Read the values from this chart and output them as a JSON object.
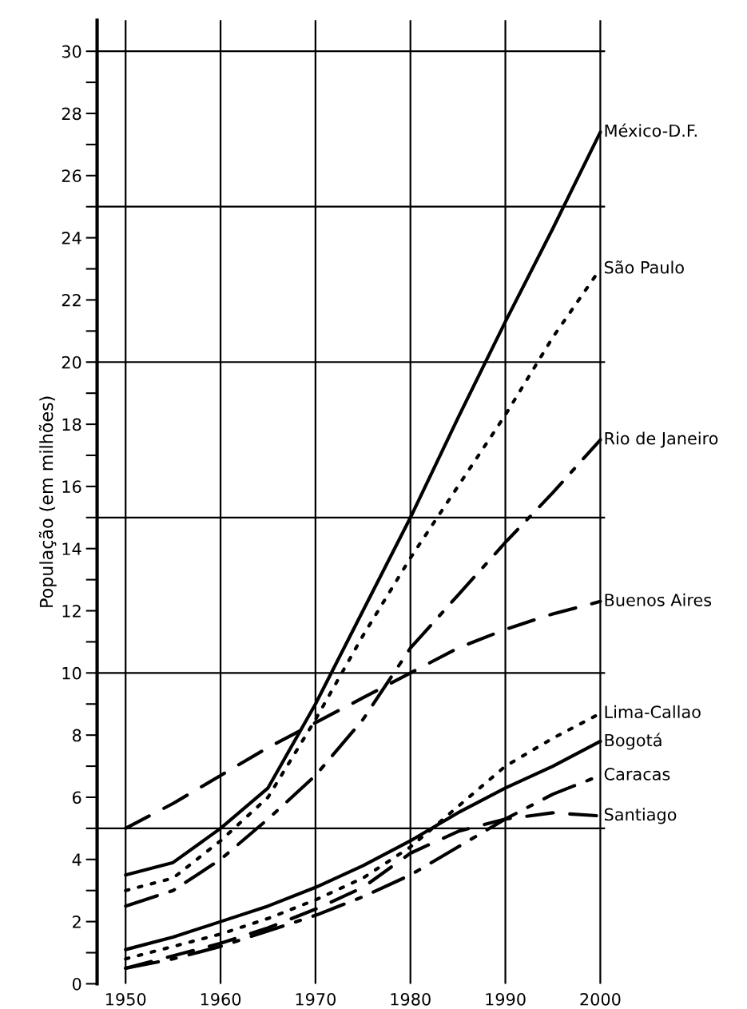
{
  "chart_data": {
    "type": "line",
    "ylabel": "População (em milhões)",
    "x": [
      1950,
      1955,
      1960,
      1965,
      1970,
      1975,
      1980,
      1985,
      1990,
      1995,
      2000
    ],
    "series": [
      {
        "name": "México-D.F.",
        "color": "#000000",
        "line_style": "solid",
        "values": [
          3.5,
          3.9,
          5.0,
          6.3,
          9.0,
          12.0,
          15.0,
          18.2,
          21.3,
          24.3,
          27.4
        ]
      },
      {
        "name": "São Paulo",
        "color": "#000000",
        "line_style": "dotted",
        "values": [
          3.0,
          3.4,
          4.6,
          6.0,
          8.5,
          11.2,
          13.7,
          16.0,
          18.3,
          20.8,
          23.0
        ]
      },
      {
        "name": "Rio de Janeiro",
        "color": "#000000",
        "line_style": "dashdot",
        "values": [
          2.5,
          3.0,
          4.0,
          5.3,
          6.7,
          8.5,
          10.8,
          12.5,
          14.2,
          15.8,
          17.5
        ]
      },
      {
        "name": "Buenos Aires",
        "color": "#000000",
        "line_style": "dashed",
        "values": [
          5.0,
          5.8,
          6.7,
          7.6,
          8.4,
          9.2,
          10.0,
          10.8,
          11.4,
          11.9,
          12.3
        ]
      },
      {
        "name": "Lima-Callao",
        "color": "#000000",
        "line_style": "dotted",
        "values": [
          0.8,
          1.2,
          1.6,
          2.1,
          2.7,
          3.4,
          4.4,
          5.7,
          7.0,
          7.9,
          8.7
        ]
      },
      {
        "name": "Bogotá",
        "color": "#000000",
        "line_style": "solid",
        "values": [
          1.1,
          1.5,
          2.0,
          2.5,
          3.1,
          3.8,
          4.6,
          5.5,
          6.3,
          7.0,
          7.8
        ]
      },
      {
        "name": "Caracas",
        "color": "#000000",
        "line_style": "dashdot",
        "values": [
          0.5,
          0.8,
          1.2,
          1.7,
          2.2,
          2.8,
          3.5,
          4.4,
          5.3,
          6.1,
          6.7
        ]
      },
      {
        "name": "Santiago",
        "color": "#000000",
        "line_style": "dashed",
        "values": [
          0.5,
          0.9,
          1.3,
          1.8,
          2.4,
          3.1,
          4.2,
          4.9,
          5.3,
          5.5,
          5.4
        ]
      }
    ],
    "xlim": [
      1947,
      2000.5
    ],
    "ylim": [
      0,
      31
    ],
    "xticks": [
      1950,
      1960,
      1970,
      1980,
      1990,
      2000
    ],
    "yticks": [
      0,
      {
        "value": 1,
        "label": null
      },
      2,
      {
        "value": 3,
        "label": null
      },
      4,
      {
        "value": 5,
        "label": null
      },
      6,
      {
        "value": 7,
        "label": null
      },
      8,
      {
        "value": 9,
        "label": null
      },
      10,
      {
        "value": 11,
        "label": null
      },
      12,
      {
        "value": 13,
        "label": null
      },
      14,
      {
        "value": 15,
        "label": null
      },
      16,
      {
        "value": 17,
        "label": null
      },
      18,
      {
        "value": 19,
        "label": null
      },
      20,
      {
        "value": 21,
        "label": null
      },
      22,
      {
        "value": 23,
        "label": null
      },
      24,
      {
        "value": 25,
        "label": null
      },
      26,
      {
        "value": 27,
        "label": null
      },
      28,
      {
        "value": 29,
        "label": null
      },
      30
    ],
    "grid": "x",
    "ref_lines": [
      {
        "axis": "y",
        "value": 5,
        "color": "#000000"
      },
      {
        "axis": "y",
        "value": 10,
        "color": "#000000"
      },
      {
        "axis": "y",
        "value": 15,
        "color": "#000000"
      },
      {
        "axis": "y",
        "value": 20,
        "color": "#000000"
      },
      {
        "axis": "y",
        "value": 25,
        "color": "#000000"
      },
      {
        "axis": "y",
        "value": 30,
        "color": "#000000"
      }
    ],
    "legend": false
  }
}
